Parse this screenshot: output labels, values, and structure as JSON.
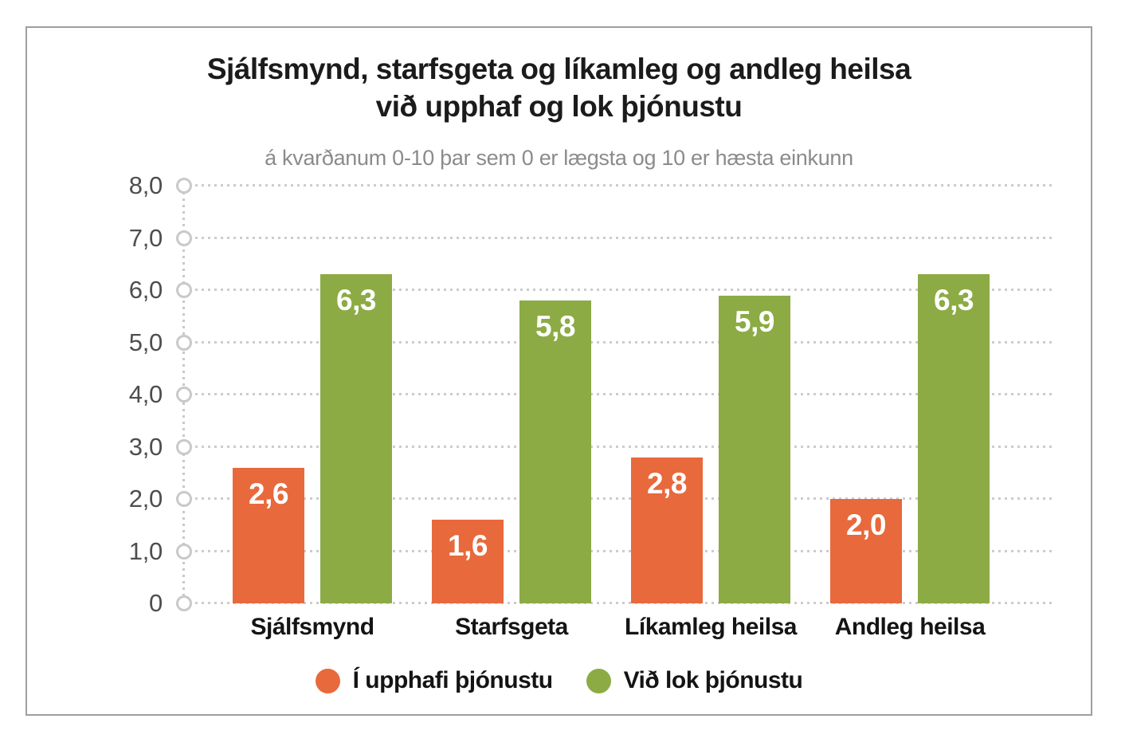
{
  "chart_data": {
    "type": "bar",
    "title_line1": "Sjálfsmynd, starfsgeta og líkamleg og andleg heilsa",
    "title_line2": "við upphaf og lok þjónustu",
    "subtitle": "á kvarðanum 0-10 þar sem 0 er lægsta og 10 er hæsta einkunn",
    "categories": [
      "Sjálfsmynd",
      "Starfsgeta",
      "Líkamleg heilsa",
      "Andleg heilsa"
    ],
    "series": [
      {
        "name": "Í upphafi þjónustu",
        "color": "#E8693C",
        "values": [
          2.6,
          1.6,
          2.8,
          2.0
        ],
        "value_labels": [
          "2,6",
          "1,6",
          "2,8",
          "2,0"
        ]
      },
      {
        "name": "Við lok þjónustu",
        "color": "#8CAB44",
        "values": [
          6.3,
          5.8,
          5.9,
          6.3
        ],
        "value_labels": [
          "6,3",
          "5,8",
          "5,9",
          "6,3"
        ]
      }
    ],
    "y_axis": {
      "min": 0,
      "max": 8,
      "ticks": [
        {
          "value": 8,
          "label": "8,0"
        },
        {
          "value": 7,
          "label": "7,0"
        },
        {
          "value": 6,
          "label": "6,0"
        },
        {
          "value": 5,
          "label": "5,0"
        },
        {
          "value": 4,
          "label": "4,0"
        },
        {
          "value": 3,
          "label": "3,0"
        },
        {
          "value": 2,
          "label": "2,0"
        },
        {
          "value": 1,
          "label": "1,0"
        },
        {
          "value": 0,
          "label": "0"
        }
      ]
    },
    "xlabel": "",
    "ylabel": "",
    "grid": "dotted-horizontal",
    "legend_position": "bottom"
  },
  "colors": {
    "grid": "#CCCCCC",
    "axis_marker": "#C9C9C9",
    "title": "#1B1B1B",
    "subtitle": "#8B8B8B",
    "y_tick_label": "#4E4E4E",
    "category_label": "#141414",
    "frame_border": "#9E9E9E",
    "bar_value_text": "#FFFFFF"
  }
}
